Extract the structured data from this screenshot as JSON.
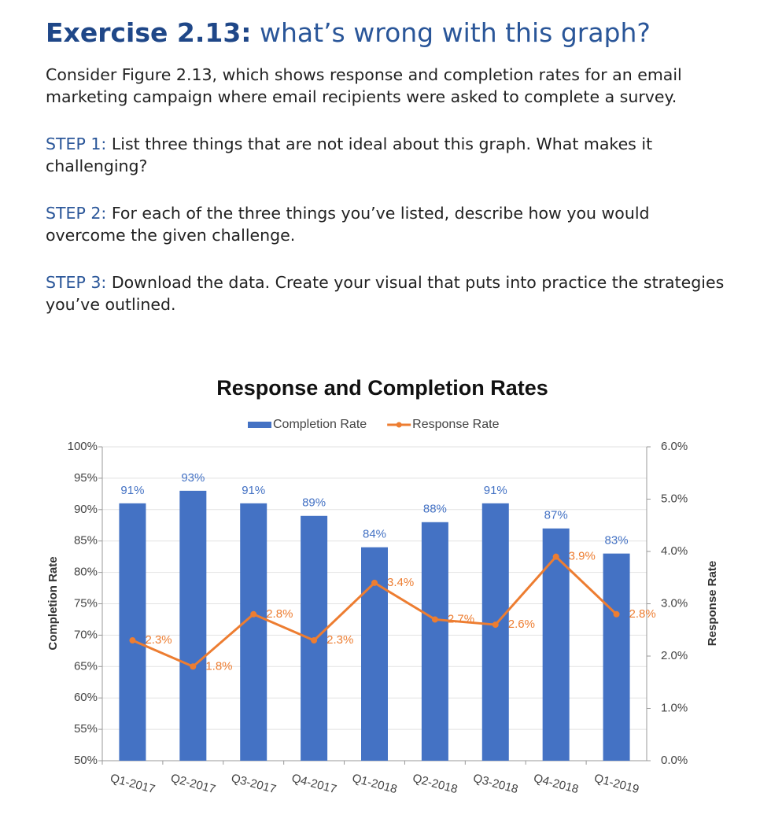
{
  "header": {
    "title_prefix": "Exercise 2.13:",
    "title_rest": "what’s wrong with this graph?"
  },
  "intro": "Consider Figure 2.13, which shows response and completion rates for an email marketing campaign where email recipients were asked to complete a survey.",
  "steps": [
    {
      "label": "STEP 1:",
      "text": "List three things that are not ideal about this graph. What makes it challenging?"
    },
    {
      "label": "STEP 2:",
      "text": "For each of the three things you’ve listed, describe how you would overcome the given challenge."
    },
    {
      "label": "STEP 3:",
      "text": "Download the data. Create your visual that puts into practice the strategies you’ve outlined."
    }
  ],
  "chart_data": {
    "type": "bar",
    "title": "Response and Completion Rates",
    "categories": [
      "Q1-2017",
      "Q2-2017",
      "Q3-2017",
      "Q4-2017",
      "Q1-2018",
      "Q2-2018",
      "Q3-2018",
      "Q4-2018",
      "Q1-2019"
    ],
    "series": [
      {
        "name": "Completion Rate",
        "type": "bar",
        "color": "#4472c4",
        "values": [
          91,
          93,
          91,
          89,
          84,
          88,
          91,
          87,
          83
        ],
        "value_labels": [
          "91%",
          "93%",
          "91%",
          "89%",
          "84%",
          "88%",
          "91%",
          "87%",
          "83%"
        ]
      },
      {
        "name": "Response Rate",
        "type": "line",
        "axis": "y2",
        "color": "#ed7d31",
        "values": [
          2.3,
          1.8,
          2.8,
          2.3,
          3.4,
          2.7,
          2.6,
          3.9,
          2.8
        ],
        "value_labels": [
          "2.3%",
          "1.8%",
          "2.8%",
          "2.3%",
          "3.4%",
          "2.7%",
          "2.6%",
          "3.9%",
          "2.8%"
        ]
      }
    ],
    "ylabel": "Completion Rate",
    "y2label": "Response Rate",
    "ylim": [
      50,
      100
    ],
    "yticks": [
      {
        "value": 50,
        "label": "50%"
      },
      {
        "value": 55,
        "label": "55%"
      },
      {
        "value": 60,
        "label": "60%"
      },
      {
        "value": 65,
        "label": "65%"
      },
      {
        "value": 70,
        "label": "70%"
      },
      {
        "value": 75,
        "label": "75%"
      },
      {
        "value": 80,
        "label": "80%"
      },
      {
        "value": 85,
        "label": "85%"
      },
      {
        "value": 90,
        "label": "90%"
      },
      {
        "value": 95,
        "label": "95%"
      },
      {
        "value": 100,
        "label": "100%"
      }
    ],
    "y2lim": [
      0,
      6
    ],
    "y2ticks": [
      {
        "value": 0,
        "label": "0.0%"
      },
      {
        "value": 1,
        "label": "1.0%"
      },
      {
        "value": 2,
        "label": "2.0%"
      },
      {
        "value": 3,
        "label": "3.0%"
      },
      {
        "value": 4,
        "label": "4.0%"
      },
      {
        "value": 5,
        "label": "5.0%"
      },
      {
        "value": 6,
        "label": "6.0%"
      }
    ],
    "grid": true,
    "legend": "top"
  }
}
